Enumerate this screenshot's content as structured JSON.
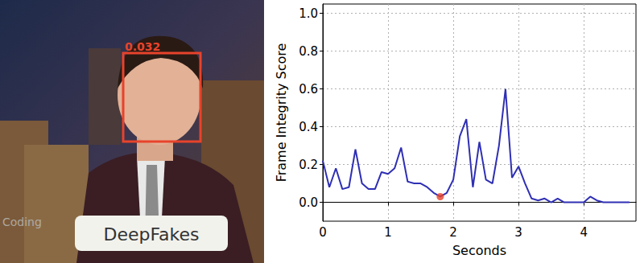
{
  "chart_data": {
    "type": "line",
    "y_label": "Frame Integrity Score",
    "x_label": "Seconds",
    "x": [
      0,
      0.1,
      0.2,
      0.3,
      0.4,
      0.5,
      0.6,
      0.7,
      0.8,
      0.9,
      1.0,
      1.1,
      1.2,
      1.3,
      1.4,
      1.5,
      1.6,
      1.7,
      1.8,
      1.9,
      2.0,
      2.1,
      2.2,
      2.3,
      2.4,
      2.5,
      2.6,
      2.7,
      2.8,
      2.9,
      3.0,
      3.1,
      3.2,
      3.3,
      3.4,
      3.5,
      3.6,
      3.7,
      3.8,
      3.9,
      4.0,
      4.1,
      4.2,
      4.3,
      4.4,
      4.5,
      4.6,
      4.7
    ],
    "values": [
      0.22,
      0.08,
      0.18,
      0.07,
      0.08,
      0.28,
      0.1,
      0.07,
      0.07,
      0.16,
      0.15,
      0.18,
      0.29,
      0.11,
      0.1,
      0.1,
      0.08,
      0.05,
      0.03,
      0.05,
      0.12,
      0.35,
      0.44,
      0.08,
      0.32,
      0.12,
      0.1,
      0.3,
      0.6,
      0.13,
      0.19,
      0.1,
      0.02,
      0.01,
      0.02,
      0.0,
      0.02,
      0.0,
      0.0,
      0.0,
      0.0,
      0.03,
      0.01,
      0.0,
      0.0,
      0.0,
      0.0,
      0.0
    ],
    "color": "#2f2fb4",
    "line_style": "solid",
    "marked_point": {
      "x": 1.8,
      "y": 0.03,
      "color": "#e8432b"
    },
    "xlim": [
      0,
      4.8
    ],
    "xticks": [
      0,
      1,
      2,
      3,
      4
    ],
    "ylim": [
      -0.1,
      1.05
    ],
    "yticks": [
      {
        "value": 0,
        "label": "0.0"
      },
      0.2,
      0.4,
      0.6,
      0.8,
      {
        "value": 1,
        "label": "1.0"
      }
    ],
    "grid": true
  },
  "image_panel": {
    "face_score": "0.032",
    "caption": "DeepFakes",
    "watermark": "Coding"
  }
}
